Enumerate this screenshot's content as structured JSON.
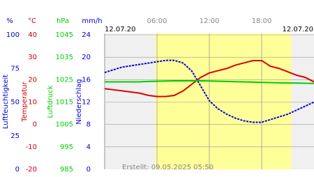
{
  "chart_data": {
    "type": "line",
    "dates": [
      "12.07.20",
      "12.07.20"
    ],
    "footer": "Erstellt: 09.05.2025 05:50",
    "xlim": [
      0,
      24
    ],
    "xticks": [
      {
        "value": 6,
        "label": "06:00"
      },
      {
        "value": 12,
        "label": "12:00"
      },
      {
        "value": 18,
        "label": "18:00"
      }
    ],
    "daylight": [
      5.8,
      21.4
    ],
    "grid": true,
    "axes": [
      {
        "unit": "%",
        "title": "Luftfeuchtigkeit",
        "color": "#0000cc",
        "lim": [
          0,
          100
        ],
        "ticks": [
          0,
          25,
          50,
          75,
          100
        ]
      },
      {
        "unit": "°C",
        "title": "Temperatur",
        "color": "#cc0000",
        "lim": [
          -20,
          40
        ],
        "ticks": [
          -20,
          -10,
          0,
          10,
          20,
          30,
          40
        ]
      },
      {
        "unit": "hPa",
        "title": "Luftdruck",
        "color": "#00cc00",
        "lim": [
          985,
          1045
        ],
        "ticks": [
          985,
          995,
          1005,
          1015,
          1025,
          1035,
          1045
        ]
      },
      {
        "unit": "mm/h",
        "title": "Niederschlag",
        "color": "#0000cc",
        "lim": [
          0,
          24
        ],
        "ticks": [
          0,
          4,
          8,
          12,
          16,
          20,
          24
        ]
      }
    ],
    "x": [
      0,
      1,
      2,
      3,
      4,
      5,
      6,
      7,
      8,
      9,
      10,
      11,
      12,
      13,
      14,
      15,
      16,
      17,
      18,
      19,
      20,
      21,
      22,
      23,
      24
    ],
    "series": [
      {
        "axis": 0,
        "color": "#0000cc",
        "values": [
          72,
          74,
          76,
          77,
          78,
          79,
          80,
          81,
          81,
          79,
          73,
          62,
          51,
          45,
          41,
          38,
          36,
          35,
          35,
          37,
          39,
          41,
          44,
          47,
          50
        ]
      },
      {
        "axis": 1,
        "color": "#dd0000",
        "values": [
          16,
          15.5,
          15,
          14.5,
          14,
          13,
          12.5,
          12.5,
          13,
          15,
          18,
          21,
          23,
          24,
          25,
          26.5,
          27.5,
          28.5,
          28.5,
          26,
          25,
          23.5,
          22,
          21,
          19
        ]
      },
      {
        "axis": 2,
        "color": "#00cc00",
        "values": [
          1024,
          1024,
          1024,
          1024,
          1024,
          1024.2,
          1024.3,
          1024.4,
          1024.5,
          1024.5,
          1024.5,
          1024.5,
          1024.4,
          1024.3,
          1024.2,
          1024.1,
          1024,
          1023.9,
          1023.8,
          1023.7,
          1023.6,
          1023.5,
          1023.5,
          1023.4,
          1023.3
        ]
      }
    ]
  }
}
